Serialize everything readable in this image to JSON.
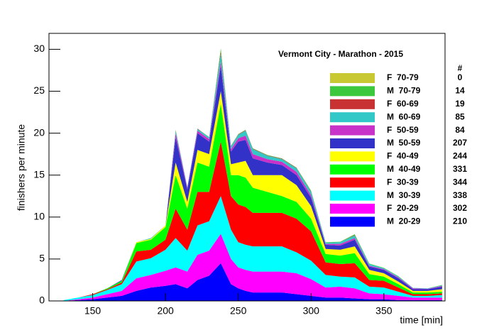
{
  "chart_data": {
    "type": "stacked_area",
    "title": "Vermont City - Marathon - 2015",
    "x_label": "time [min]",
    "y_label": "finishers per minute",
    "legend_header": "#",
    "xlim": [
      120,
      392
    ],
    "ylim": [
      0,
      31.9
    ],
    "xticks": [
      150,
      200,
      250,
      300,
      350
    ],
    "yticks": [
      0,
      5,
      10,
      15,
      20,
      25,
      30
    ],
    "x": [
      130,
      140,
      150,
      160,
      170,
      180,
      190,
      200,
      207,
      215,
      222,
      230,
      238,
      245,
      250,
      255,
      260,
      270,
      280,
      290,
      300,
      310,
      320,
      330,
      340,
      350,
      360,
      370,
      380,
      390
    ],
    "series": [
      {
        "name": "M  20-29",
        "count": 210,
        "color": "#0000ff",
        "values": [
          0,
          0.1,
          0.2,
          0.4,
          0.6,
          1.2,
          1.6,
          1.8,
          2,
          1.5,
          2.5,
          3,
          4.5,
          2,
          1.5,
          1.2,
          1,
          1,
          1,
          0.8,
          0.6,
          0.4,
          0.4,
          0.3,
          0.2,
          0.2,
          0.1,
          0.1,
          0.1,
          0.1
        ]
      },
      {
        "name": "F  20-29",
        "count": 302,
        "color": "#ff00ff",
        "values": [
          0,
          0.1,
          0.2,
          0.4,
          0.6,
          1.5,
          1.5,
          1.8,
          2,
          2,
          3,
          3,
          3.5,
          3,
          2.5,
          2.5,
          2.5,
          2.5,
          2.5,
          2.5,
          2,
          1.2,
          1.3,
          1.2,
          0.7,
          0.6,
          0.5,
          0.3,
          0.3,
          0.3
        ]
      },
      {
        "name": "M  30-39",
        "count": 338,
        "color": "#00ffff",
        "values": [
          0.1,
          0.2,
          0.3,
          0.5,
          0.8,
          2,
          2,
          2.5,
          3.5,
          2.5,
          3.5,
          3.5,
          4.5,
          3.5,
          3,
          3,
          3,
          3,
          3,
          2.5,
          2.2,
          1.5,
          1.2,
          1.3,
          0.8,
          0.8,
          0.5,
          0.2,
          0.2,
          0.3
        ]
      },
      {
        "name": "F  30-39",
        "count": 344,
        "color": "#ff0000",
        "values": [
          0,
          0,
          0.1,
          0.1,
          0.2,
          1.2,
          1,
          1.2,
          3.5,
          2.5,
          4,
          3.5,
          6.5,
          4,
          4.5,
          4.5,
          4,
          4,
          4,
          4,
          3.5,
          1.5,
          1.5,
          1.7,
          0.8,
          0.8,
          0.5,
          0.2,
          0.2,
          0.2
        ]
      },
      {
        "name": "M  40-49",
        "count": 331,
        "color": "#00ff00",
        "values": [
          0,
          0,
          0,
          0.1,
          0.2,
          1,
          1.2,
          1.5,
          4,
          2.5,
          3.5,
          3,
          4.5,
          2.5,
          3.5,
          3.5,
          3,
          2.5,
          2,
          2,
          1.5,
          1,
          1,
          1.2,
          0.7,
          0.5,
          0.4,
          0.2,
          0.2,
          0.2
        ]
      },
      {
        "name": "F  40-49",
        "count": 244,
        "color": "#ffff00",
        "values": [
          0,
          0,
          0,
          0,
          0,
          0.1,
          0.1,
          0.2,
          1.5,
          0.8,
          1.5,
          1.5,
          1.5,
          1.3,
          1.5,
          2,
          1.5,
          2,
          2.5,
          2,
          1.5,
          0.6,
          0.7,
          0.8,
          0.5,
          0.4,
          0.3,
          0.2,
          0.2,
          0.3
        ]
      },
      {
        "name": "M  50-59",
        "count": 207,
        "color": "#3232c8",
        "values": [
          0,
          0,
          0,
          0,
          0.1,
          0,
          0,
          0,
          3,
          1.5,
          2,
          1.5,
          3,
          1.5,
          2.5,
          2.5,
          2,
          1.5,
          1.2,
          1.2,
          1,
          0.5,
          0.5,
          0.8,
          0.4,
          0.4,
          0.4,
          0.2,
          0.2,
          0.3
        ]
      },
      {
        "name": "F  50-59",
        "count": 84,
        "color": "#c832c8",
        "values": [
          0,
          0,
          0,
          0,
          0,
          0,
          0,
          0,
          0.5,
          0.2,
          0.3,
          0.3,
          0.5,
          0.3,
          0.4,
          0.5,
          0.5,
          0.4,
          0.4,
          0.4,
          0.3,
          0.1,
          0.2,
          0.2,
          0.1,
          0.1,
          0.1,
          0.1,
          0.05,
          0.1
        ]
      },
      {
        "name": "M  60-69",
        "count": 85,
        "color": "#32c8c8",
        "values": [
          0,
          0,
          0,
          0,
          0,
          0,
          0.1,
          0,
          0.3,
          0.1,
          0.2,
          0.2,
          1,
          0.3,
          0.4,
          0.6,
          0.6,
          0.4,
          0.3,
          0.4,
          0.4,
          0.15,
          0.2,
          0.3,
          0.2,
          0.1,
          0.1,
          0.05,
          0.05,
          0.05
        ]
      },
      {
        "name": "F  60-69",
        "count": 19,
        "color": "#c83232",
        "values": [
          0,
          0,
          0,
          0,
          0,
          0,
          0,
          0,
          0.05,
          0,
          0.05,
          0,
          0.3,
          0.05,
          0.05,
          0.05,
          0.05,
          0.05,
          0.05,
          0.05,
          0.05,
          0,
          0,
          0.05,
          0,
          0,
          0,
          0,
          0,
          0
        ]
      },
      {
        "name": "M  70-79",
        "count": 14,
        "color": "#3cc83c",
        "values": [
          0,
          0,
          0,
          0,
          0,
          0,
          0,
          0,
          0.05,
          0,
          0,
          0.05,
          0.3,
          0.05,
          0.05,
          0.05,
          0.05,
          0.05,
          0.05,
          0.05,
          0.1,
          0.05,
          0.05,
          0.1,
          0.05,
          0.05,
          0.05,
          0,
          0,
          0.05
        ]
      },
      {
        "name": "F  70-79",
        "count": 0,
        "color": "#c8c832",
        "values": [
          0,
          0,
          0,
          0,
          0,
          0,
          0,
          0,
          0,
          0,
          0,
          0,
          0,
          0,
          0,
          0,
          0,
          0,
          0,
          0,
          0,
          0,
          0,
          0,
          0,
          0,
          0,
          0,
          0,
          0
        ]
      }
    ]
  }
}
